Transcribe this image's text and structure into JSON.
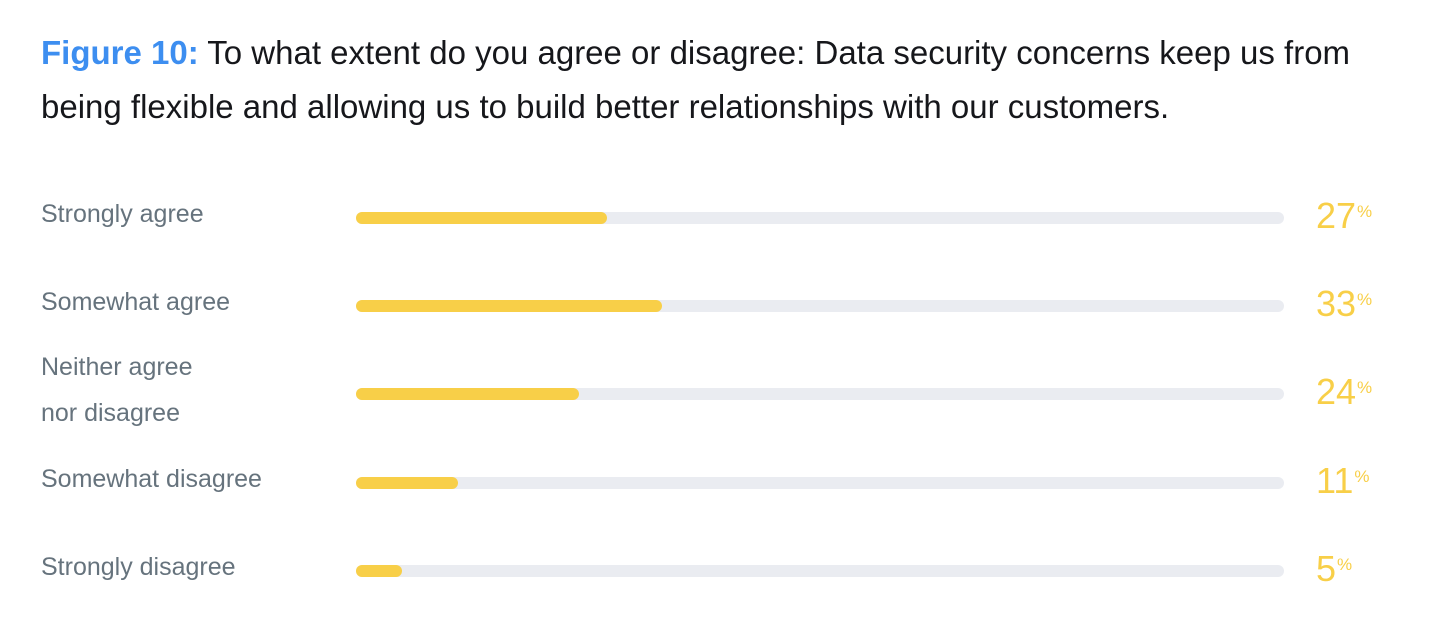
{
  "title": {
    "figure_label": "Figure 10:",
    "text": " To what extent do you agree or disagree: Data security concerns keep us from being flexible and allowing us to build better relationships with our customers."
  },
  "colors": {
    "accent_blue": "#3d8ef0",
    "bar_fill": "#f8cf48",
    "bar_track": "#eaecf1",
    "label_gray": "#66737d"
  },
  "chart_data": {
    "type": "bar",
    "orientation": "horizontal",
    "categories": [
      "Strongly agree",
      "Somewhat agree",
      "Neither agree nor disagree",
      "Somewhat disagree",
      "Strongly disagree"
    ],
    "values": [
      27,
      33,
      24,
      11,
      5
    ],
    "value_labels": [
      "27",
      "33",
      "24",
      "11",
      "5"
    ],
    "unit": "%",
    "title": "Figure 10: To what extent do you agree or disagree: Data security concerns keep us from being flexible and allowing us to build better relationships with our customers.",
    "xlim": [
      0,
      100
    ],
    "grid": false,
    "legend": "none",
    "rows": [
      {
        "label_lines": [
          "Strongly agree"
        ],
        "value": 27,
        "value_label": "27"
      },
      {
        "label_lines": [
          "Somewhat agree"
        ],
        "value": 33,
        "value_label": "33"
      },
      {
        "label_lines": [
          "Neither agree",
          "nor disagree"
        ],
        "value": 24,
        "value_label": "24"
      },
      {
        "label_lines": [
          "Somewhat disagree"
        ],
        "value": 11,
        "value_label": "11"
      },
      {
        "label_lines": [
          "Strongly disagree"
        ],
        "value": 5,
        "value_label": "5"
      }
    ]
  }
}
